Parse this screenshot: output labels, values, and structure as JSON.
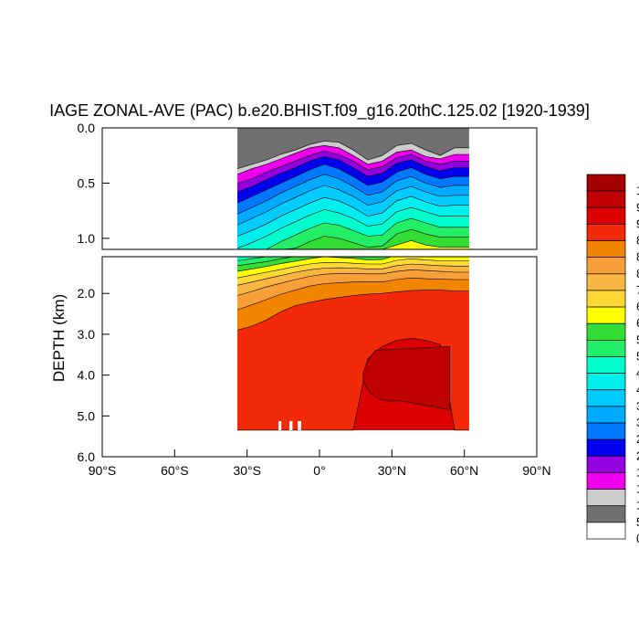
{
  "chart_data": {
    "type": "heatmap",
    "title": "IAGE ZONAL-AVE (PAC) b.e20.BHIST.f09_g16.20thC.125.02 [1920-1939]",
    "xlabel": "",
    "ylabel": "DEPTH (km)",
    "xlim": [
      -90,
      90
    ],
    "ylim": [
      0,
      6
    ],
    "x_ticks": [
      {
        "value": -90,
        "label": "90°S"
      },
      {
        "value": -60,
        "label": "60°S"
      },
      {
        "value": -30,
        "label": "30°S"
      },
      {
        "value": 0,
        "label": "0°"
      },
      {
        "value": 30,
        "label": "30°N"
      },
      {
        "value": 60,
        "label": "60°N"
      },
      {
        "value": 90,
        "label": "90°N"
      }
    ],
    "y_ticks_upper": [
      {
        "value": 0.0,
        "label": "0.0"
      },
      {
        "value": 0.5,
        "label": "0.5"
      },
      {
        "value": 1.0,
        "label": "1.0"
      }
    ],
    "y_ticks_lower": [
      {
        "value": 2.0,
        "label": "2.0"
      },
      {
        "value": 3.0,
        "label": "3.0"
      },
      {
        "value": 4.0,
        "label": "4.0"
      },
      {
        "value": 5.0,
        "label": "5.0"
      },
      {
        "value": 6.0,
        "label": "6.0"
      }
    ],
    "panels": [
      {
        "name": "upper",
        "depth_range": [
          0.0,
          1.1
        ]
      },
      {
        "name": "lower",
        "depth_range": [
          1.1,
          6.0
        ]
      }
    ],
    "ocean_extent": {
      "lat_min": -34,
      "lat_max": 62,
      "max_depth": 5.35
    },
    "color_levels": [
      {
        "color": "#a50000"
      },
      {
        "color": "#c00000"
      },
      {
        "color": "#dd0000"
      },
      {
        "color": "#f22a0a"
      },
      {
        "color": "#f28500"
      },
      {
        "color": "#f7a03a"
      },
      {
        "color": "#f9b542"
      },
      {
        "color": "#fdd835"
      },
      {
        "color": "#ffff00"
      },
      {
        "color": "#33dd33"
      },
      {
        "color": "#22ee66"
      },
      {
        "color": "#00ffcc"
      },
      {
        "color": "#00eeee"
      },
      {
        "color": "#00ccff"
      },
      {
        "color": "#00aaff"
      },
      {
        "color": "#0077ff"
      },
      {
        "color": "#0000ee"
      },
      {
        "color": "#9400dd"
      },
      {
        "color": "#ee00ee"
      },
      {
        "color": "#cccccc"
      },
      {
        "color": "#707070"
      },
      {
        "color": "#ffffff"
      }
    ],
    "field_layers": [
      {
        "color": "#707070",
        "top": [
          0.0,
          0.0,
          0.0,
          0.0,
          0.0,
          0.0,
          0.0,
          0.0,
          0.0,
          0.0,
          0.0,
          0.0,
          0.0,
          0.0,
          0.0,
          0.0
        ]
      },
      {
        "color": "#cccccc",
        "top": [
          0.37,
          0.33,
          0.29,
          0.24,
          0.2,
          0.15,
          0.12,
          0.13,
          0.2,
          0.29,
          0.25,
          0.16,
          0.14,
          0.2,
          0.25,
          0.18
        ]
      },
      {
        "color": "#ee00ee",
        "top": [
          0.42,
          0.37,
          0.33,
          0.28,
          0.23,
          0.18,
          0.16,
          0.18,
          0.25,
          0.33,
          0.3,
          0.22,
          0.2,
          0.26,
          0.28,
          0.24
        ]
      },
      {
        "color": "#9400dd",
        "top": [
          0.5,
          0.46,
          0.4,
          0.35,
          0.3,
          0.25,
          0.21,
          0.24,
          0.3,
          0.38,
          0.35,
          0.27,
          0.24,
          0.3,
          0.33,
          0.3
        ]
      },
      {
        "color": "#0000ee",
        "top": [
          0.58,
          0.53,
          0.47,
          0.41,
          0.36,
          0.3,
          0.26,
          0.29,
          0.36,
          0.44,
          0.41,
          0.32,
          0.29,
          0.35,
          0.39,
          0.36
        ]
      },
      {
        "color": "#0077ff",
        "top": [
          0.68,
          0.62,
          0.56,
          0.5,
          0.44,
          0.38,
          0.33,
          0.37,
          0.44,
          0.52,
          0.49,
          0.4,
          0.36,
          0.42,
          0.46,
          0.44
        ]
      },
      {
        "color": "#00aaff",
        "top": [
          0.78,
          0.72,
          0.66,
          0.59,
          0.53,
          0.47,
          0.42,
          0.46,
          0.53,
          0.61,
          0.58,
          0.48,
          0.44,
          0.5,
          0.54,
          0.52
        ]
      },
      {
        "color": "#00ccff",
        "top": [
          0.88,
          0.82,
          0.76,
          0.69,
          0.63,
          0.57,
          0.52,
          0.56,
          0.62,
          0.7,
          0.67,
          0.57,
          0.53,
          0.58,
          0.62,
          0.61
        ]
      },
      {
        "color": "#00eeee",
        "top": [
          0.98,
          0.93,
          0.87,
          0.8,
          0.74,
          0.68,
          0.63,
          0.66,
          0.72,
          0.8,
          0.77,
          0.66,
          0.62,
          0.67,
          0.71,
          0.7
        ]
      },
      {
        "color": "#00ffcc",
        "top": [
          1.09,
          1.04,
          0.98,
          0.91,
          0.85,
          0.79,
          0.74,
          0.77,
          0.82,
          0.89,
          0.87,
          0.76,
          0.72,
          0.76,
          0.8,
          0.8
        ]
      },
      {
        "color": "#22ee66",
        "top": [
          1.2,
          1.15,
          1.1,
          1.03,
          0.97,
          0.91,
          0.86,
          0.88,
          0.93,
          0.98,
          0.97,
          0.86,
          0.82,
          0.86,
          0.9,
          0.9
        ]
      },
      {
        "color": "#33dd33",
        "top": [
          1.32,
          1.27,
          1.22,
          1.15,
          1.09,
          1.03,
          0.98,
          1.0,
          1.04,
          1.08,
          1.07,
          0.96,
          0.92,
          0.96,
          0.99,
          0.99
        ]
      },
      {
        "color": "#ffff00",
        "top": [
          1.46,
          1.4,
          1.34,
          1.27,
          1.21,
          1.15,
          1.1,
          1.12,
          1.14,
          1.18,
          1.17,
          1.06,
          1.02,
          1.06,
          1.08,
          1.08
        ]
      },
      {
        "color": "#fdd835",
        "top": [
          1.62,
          1.55,
          1.48,
          1.41,
          1.34,
          1.28,
          1.24,
          1.24,
          1.26,
          1.28,
          1.28,
          1.19,
          1.15,
          1.18,
          1.2,
          1.2
        ]
      },
      {
        "color": "#f9b542",
        "top": [
          1.8,
          1.72,
          1.64,
          1.56,
          1.48,
          1.42,
          1.38,
          1.37,
          1.38,
          1.4,
          1.4,
          1.32,
          1.28,
          1.3,
          1.32,
          1.33
        ]
      },
      {
        "color": "#f7a03a",
        "top": [
          2.05,
          1.95,
          1.84,
          1.75,
          1.66,
          1.58,
          1.53,
          1.51,
          1.51,
          1.52,
          1.52,
          1.46,
          1.42,
          1.44,
          1.46,
          1.48
        ]
      },
      {
        "color": "#f28500",
        "top": [
          2.4,
          2.28,
          2.15,
          2.02,
          1.92,
          1.82,
          1.76,
          1.74,
          1.72,
          1.72,
          1.72,
          1.66,
          1.62,
          1.64,
          1.65,
          1.66
        ]
      },
      {
        "color": "#f22a0a",
        "top": [
          2.9,
          2.8,
          2.65,
          2.45,
          2.3,
          2.22,
          2.15,
          2.1,
          2.05,
          2.02,
          2.0,
          1.96,
          1.93,
          1.92,
          1.92,
          1.94
        ]
      },
      {
        "color": "#dd0000",
        "top": [
          9.0,
          9.0,
          9.0,
          9.0,
          9.0,
          9.0,
          9.0,
          9.0,
          9.0,
          3.6,
          3.3,
          3.15,
          3.1,
          3.15,
          3.25,
          9.0
        ]
      }
    ],
    "field_lats": [
      -34,
      -28,
      -22,
      -16,
      -10,
      -4,
      2,
      8,
      14,
      20,
      26,
      32,
      38,
      44,
      50,
      56
    ],
    "deep_red_region": {
      "color": "#c00000",
      "top": 3.3,
      "bottom": 4.85,
      "lat_min": 18,
      "lat_max": 54
    },
    "legend": {
      "placement": "right",
      "labels": [
        "1",
        "9",
        "9",
        "8",
        "8",
        "8",
        "7",
        "6",
        "6",
        "5",
        "5",
        "4",
        "4",
        "3",
        "3",
        "2",
        "2",
        "1",
        "1",
        "1",
        "5",
        "0"
      ]
    }
  }
}
